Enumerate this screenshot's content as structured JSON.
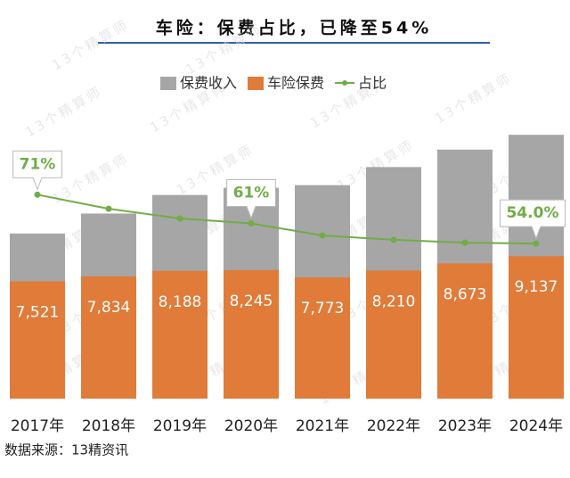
{
  "chart_data": {
    "type": "bar",
    "title": "车险：保费占比，已降至54%",
    "source": "数据来源：13精资讯",
    "watermark": "13个精算师",
    "categories": [
      "2017年",
      "2018年",
      "2019年",
      "2020年",
      "2021年",
      "2022年",
      "2023年",
      "2024年"
    ],
    "ylim": [
      0,
      17500
    ],
    "y2lim": [
      0,
      95
    ],
    "series": [
      {
        "name": "保费收入",
        "color": "#a6a6a6",
        "values": [
          10590,
          11870,
          13060,
          13520,
          13690,
          14850,
          15970,
          16920
        ]
      },
      {
        "name": "车险保费",
        "color": "#e07b39",
        "values": [
          7521,
          7834,
          8188,
          8245,
          7773,
          8210,
          8673,
          9137
        ],
        "value_labels": [
          "7,521",
          "7,834",
          "8,188",
          "8,245",
          "7,773",
          "8,210",
          "8,673",
          "9,137"
        ]
      },
      {
        "name": "占比",
        "type": "line",
        "axis": "y2",
        "color": "#70ad47",
        "values": [
          71,
          66.1,
          62.7,
          61,
          56.8,
          55.3,
          54.3,
          54.0
        ],
        "value_labels": [
          "71%",
          null,
          null,
          "61%",
          null,
          null,
          null,
          "54.0%"
        ]
      }
    ]
  }
}
